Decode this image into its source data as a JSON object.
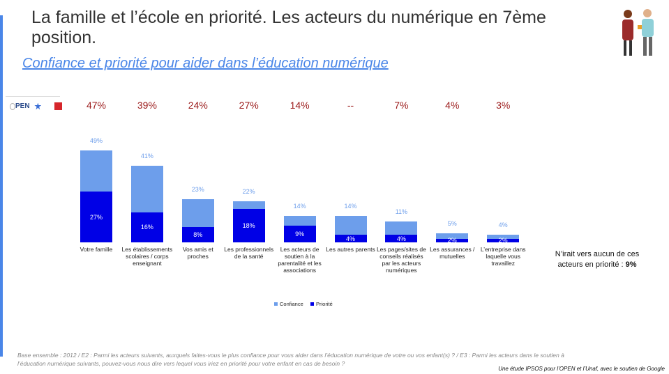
{
  "header": {
    "title": "La famille et l’école en priorité. Les acteurs du numérique en 7ème position.",
    "subtitle": "Confiance et priorité pour aider dans l’éducation numérique",
    "logo": "PEN"
  },
  "chart_data": {
    "type": "bar",
    "categories": [
      "Votre famille",
      "Les établissements scolaires / corps enseignant",
      "Vos amis et proches",
      "Les professionnels de la santé",
      "Les acteurs de soutien à la parentalité et les associations",
      "Les autres parents",
      "Les pages/sites de conseils réalisés par les acteurs numériques",
      "Les assurances / mutuelles",
      "L’entreprise dans laquelle vous travaillez"
    ],
    "top_labels": [
      "47%",
      "39%",
      "24%",
      "27%",
      "14%",
      "--",
      "7%",
      "4%",
      "3%"
    ],
    "series": [
      {
        "name": "Confiance",
        "color": "#6d9eeb",
        "values": [
          49,
          41,
          23,
          22,
          14,
          14,
          11,
          5,
          4
        ],
        "value_labels": [
          "49%",
          "41%",
          "23%",
          "22%",
          "14%",
          "14%",
          "11%",
          "5%",
          "4%"
        ]
      },
      {
        "name": "Priorité",
        "color": "#0000e6",
        "values": [
          27,
          16,
          8,
          18,
          9,
          4,
          4,
          2,
          2
        ],
        "value_labels": [
          "27%",
          "16%",
          "8%",
          "18%",
          "9%",
          "4%",
          "4%",
          "2%",
          "2%"
        ]
      }
    ],
    "note": "N’irait vers aucun de ces acteurs en priorité :",
    "note_value": "9%"
  },
  "footer": {
    "base": "Base ensemble : 2012 / E2 : Parmi les acteurs suivants, auxquels faites-vous le plus confiance pour vous aider dans l’éducation numérique de votre ou vos enfant(s) ? / E3 : Parmi les acteurs dans le soutien à l’éducation numérique suivants, pouvez-vous nous dire vers lequel vous iriez en priorité pour votre enfant en cas de besoin ?",
    "credit": "Une étude IPSOS pour l’OPEN et l’Unaf, avec le soutien de Google"
  }
}
